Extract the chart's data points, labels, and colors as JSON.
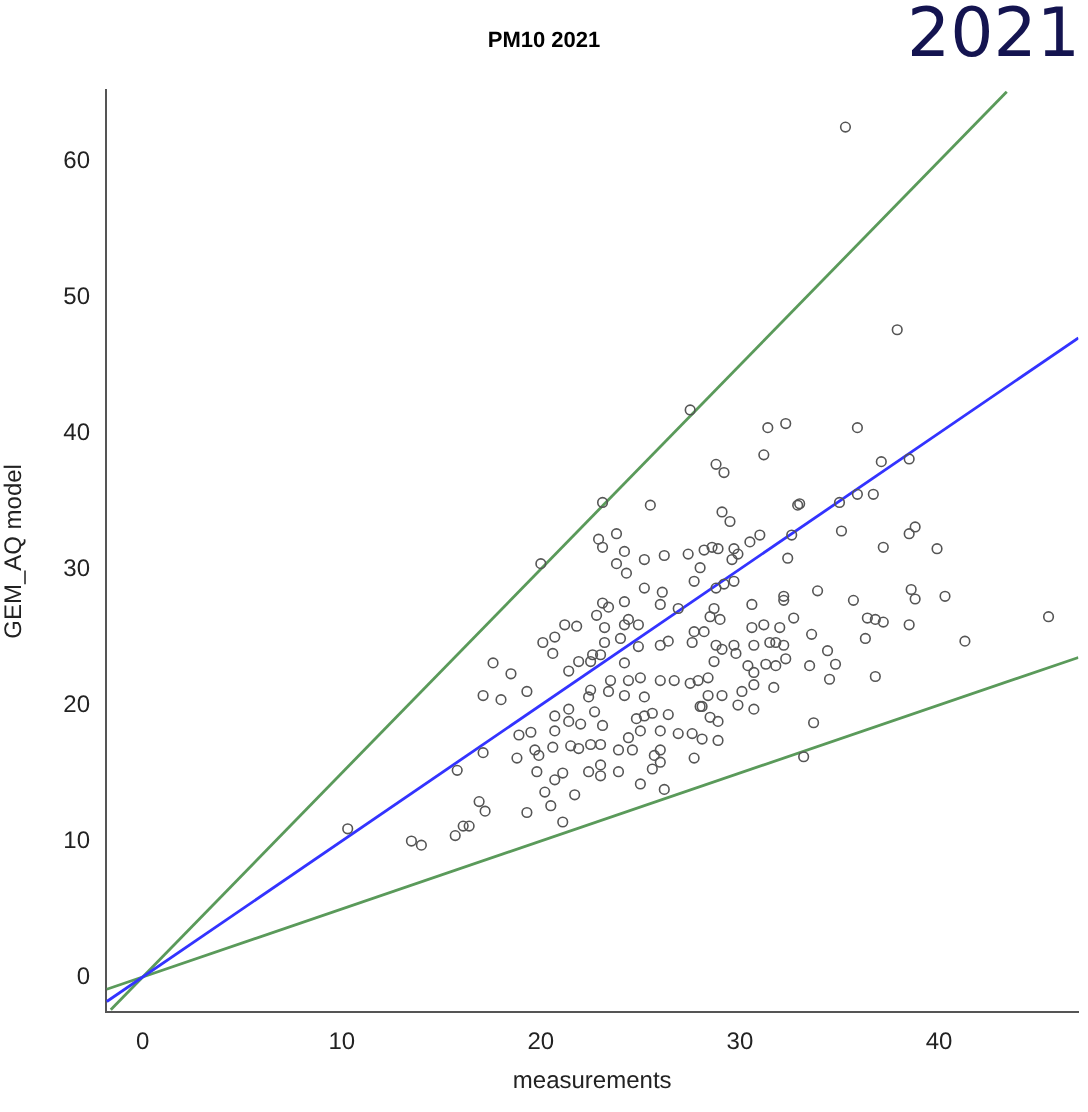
{
  "chart_data": {
    "type": "scatter",
    "title": "PM10 2021",
    "xlabel": "measurements",
    "ylabel": "GEM_AQ model",
    "annotations": [
      "2021"
    ],
    "xlim": [
      -1.84,
      47
    ],
    "ylim": [
      -2.6,
      65.2
    ],
    "xticks": [
      0,
      10,
      20,
      30,
      40
    ],
    "yticks": [
      0,
      10,
      20,
      30,
      40,
      50,
      60
    ],
    "marker": "circle",
    "series": [
      {
        "color": "#555555",
        "x": [
          23.1,
          20.0,
          25.5,
          22.9,
          23.1,
          23.8,
          24.2,
          23.8,
          25.2,
          26.2,
          24.3,
          25.2,
          26.1,
          26.0,
          23.1,
          23.4,
          24.2,
          22.8,
          21.2,
          21.8,
          24.4,
          24.9,
          24.2,
          23.2,
          20.1,
          20.7,
          20.6,
          23.2,
          24.0,
          24.9,
          26.0,
          17.6,
          18.5,
          17.1,
          18.0,
          19.3,
          21.4,
          21.9,
          22.6,
          23.0,
          22.5,
          24.2,
          25.0,
          23.5,
          24.4,
          26.0,
          22.5,
          22.4,
          23.4,
          24.2,
          25.2,
          20.7,
          21.4,
          22.7,
          24.8,
          25.2,
          25.6,
          26.4,
          18.9,
          19.5,
          20.7,
          21.4,
          22.0,
          23.1,
          24.4,
          25.0,
          26.0,
          17.1,
          18.8,
          19.7,
          19.9,
          20.6,
          21.5,
          21.9,
          22.5,
          23.0,
          23.9,
          24.6,
          25.7,
          15.8,
          19.8,
          21.1,
          22.4,
          23.0,
          23.0,
          23.9,
          25.6,
          26.0,
          20.7,
          20.2,
          21.7,
          25.0,
          26.2,
          16.9,
          17.2,
          19.3,
          20.5,
          21.1,
          16.1,
          16.4,
          15.7,
          10.3,
          13.5,
          14.0,
          27.5,
          31.4,
          32.3,
          35.9,
          31.2,
          28.8,
          29.2,
          37.1,
          38.5,
          29.1,
          29.5,
          32.9,
          33.0,
          35.0,
          35.9,
          36.7,
          31.0,
          30.5,
          32.6,
          35.1,
          38.5,
          38.8,
          37.2,
          39.9,
          27.4,
          28.2,
          28.6,
          28.9,
          29.7,
          29.9,
          29.6,
          28.0,
          32.4,
          27.7,
          28.8,
          29.2,
          29.7,
          26.9,
          28.7,
          30.6,
          32.2,
          32.2,
          33.9,
          35.7,
          38.6,
          38.8,
          40.3,
          45.5,
          32.7,
          28.5,
          29.0,
          36.4,
          36.8,
          37.2,
          38.5,
          30.6,
          31.2,
          27.7,
          28.2,
          33.6,
          36.3,
          41.3,
          26.4,
          27.6,
          28.8,
          29.1,
          29.7,
          29.8,
          30.7,
          31.5,
          31.8,
          32.2,
          32.0,
          34.4,
          28.7,
          30.4,
          30.7,
          31.3,
          31.8,
          32.3,
          33.5,
          34.8,
          34.5,
          36.8,
          26.7,
          27.5,
          27.9,
          28.4,
          30.7,
          30.1,
          31.7,
          28.4,
          29.1,
          29.9,
          30.7,
          28.0,
          28.1,
          28.5,
          28.9,
          33.7,
          26.9,
          27.6,
          28.1,
          28.9,
          26.0,
          27.7,
          33.2,
          35.3,
          37.9
        ],
        "values": [
          34.9,
          30.4,
          34.7,
          32.2,
          31.6,
          32.6,
          31.3,
          30.4,
          30.7,
          31.0,
          29.7,
          28.6,
          28.3,
          27.4,
          27.5,
          27.2,
          27.6,
          26.6,
          25.9,
          25.8,
          26.3,
          25.9,
          25.9,
          25.7,
          24.6,
          25.0,
          23.8,
          24.6,
          24.9,
          24.3,
          24.4,
          23.1,
          22.3,
          20.7,
          20.4,
          21.0,
          22.5,
          23.2,
          23.7,
          23.7,
          23.2,
          23.1,
          22.0,
          21.8,
          21.8,
          21.8,
          21.1,
          20.6,
          21.0,
          20.7,
          20.6,
          19.2,
          19.7,
          19.5,
          19.0,
          19.2,
          19.4,
          19.3,
          17.8,
          18.0,
          18.1,
          18.8,
          18.6,
          18.5,
          17.6,
          18.1,
          18.1,
          16.5,
          16.1,
          16.7,
          16.3,
          16.9,
          17.0,
          16.8,
          17.1,
          17.1,
          16.7,
          16.7,
          16.3,
          15.2,
          15.1,
          15.0,
          15.1,
          15.6,
          14.8,
          15.1,
          15.3,
          15.8,
          14.5,
          13.6,
          13.4,
          14.2,
          13.8,
          12.9,
          12.2,
          12.1,
          12.6,
          11.4,
          11.1,
          11.1,
          10.4,
          10.9,
          10.0,
          9.7,
          41.7,
          40.4,
          40.7,
          40.4,
          38.4,
          37.7,
          37.1,
          37.9,
          38.1,
          34.2,
          33.5,
          34.7,
          34.8,
          34.9,
          35.5,
          35.5,
          32.5,
          32.0,
          32.5,
          32.8,
          32.6,
          33.1,
          31.6,
          31.5,
          31.1,
          31.4,
          31.6,
          31.5,
          31.5,
          31.1,
          30.7,
          30.1,
          30.8,
          29.1,
          28.6,
          28.9,
          29.1,
          27.1,
          27.1,
          27.4,
          28.0,
          27.7,
          28.4,
          27.7,
          28.5,
          27.8,
          28.0,
          26.5,
          26.4,
          26.5,
          26.3,
          26.4,
          26.3,
          26.1,
          25.9,
          25.7,
          25.9,
          25.4,
          25.4,
          25.2,
          24.9,
          24.7,
          24.7,
          24.6,
          24.4,
          24.1,
          24.4,
          23.8,
          24.4,
          24.6,
          24.6,
          24.4,
          25.7,
          24.0,
          23.2,
          22.9,
          22.4,
          23.0,
          22.9,
          23.4,
          22.9,
          23.0,
          21.9,
          22.1,
          21.8,
          21.6,
          21.8,
          22.0,
          21.5,
          21.0,
          21.3,
          20.7,
          20.7,
          20.0,
          19.7,
          19.9,
          19.9,
          19.1,
          18.8,
          18.7,
          17.9,
          17.9,
          17.5,
          17.4,
          16.7,
          16.1,
          16.2,
          62.5,
          47.6
        ]
      },
      {
        "type": "line",
        "marker": "none",
        "color": "#3333ff",
        "x": [
          -1.8,
          47
        ],
        "values": [
          -1.8,
          47
        ]
      },
      {
        "type": "line",
        "marker": "none",
        "color": "#5a9a5a",
        "x": [
          -1.6,
          43.4
        ],
        "values": [
          -2.4,
          65.1
        ]
      },
      {
        "type": "line",
        "marker": "none",
        "color": "#5a9a5a",
        "x": [
          -1.8,
          47
        ],
        "values": [
          -0.9,
          23.5
        ]
      }
    ]
  }
}
